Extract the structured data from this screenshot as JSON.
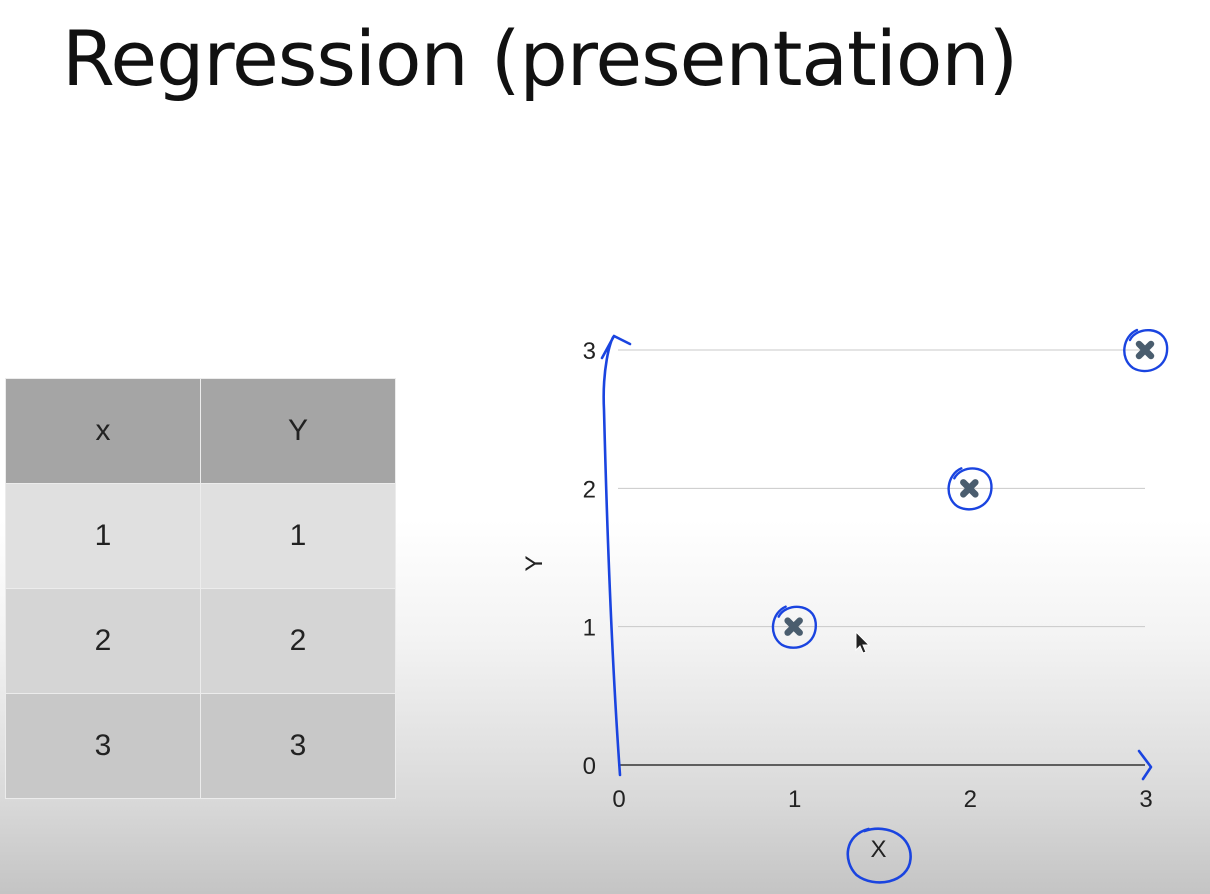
{
  "slide": {
    "title": "Regression (presentation)"
  },
  "table": {
    "headers": [
      "x",
      "Y"
    ],
    "rows": [
      [
        "1",
        "1"
      ],
      [
        "2",
        "2"
      ],
      [
        "3",
        "3"
      ]
    ]
  },
  "chart_data": {
    "type": "scatter",
    "points": [
      {
        "x": 1,
        "y": 1
      },
      {
        "x": 2,
        "y": 2
      },
      {
        "x": 3,
        "y": 3
      }
    ],
    "xlabel": "X",
    "ylabel": "Y",
    "xlim": [
      0,
      3
    ],
    "ylim": [
      0,
      3
    ],
    "xticks": [
      0,
      1,
      2,
      3
    ],
    "yticks": [
      0,
      1,
      2,
      3
    ],
    "grid": "horizontal",
    "marker_color": "#4a5d6e",
    "annotation_color": "#1a44e0"
  }
}
